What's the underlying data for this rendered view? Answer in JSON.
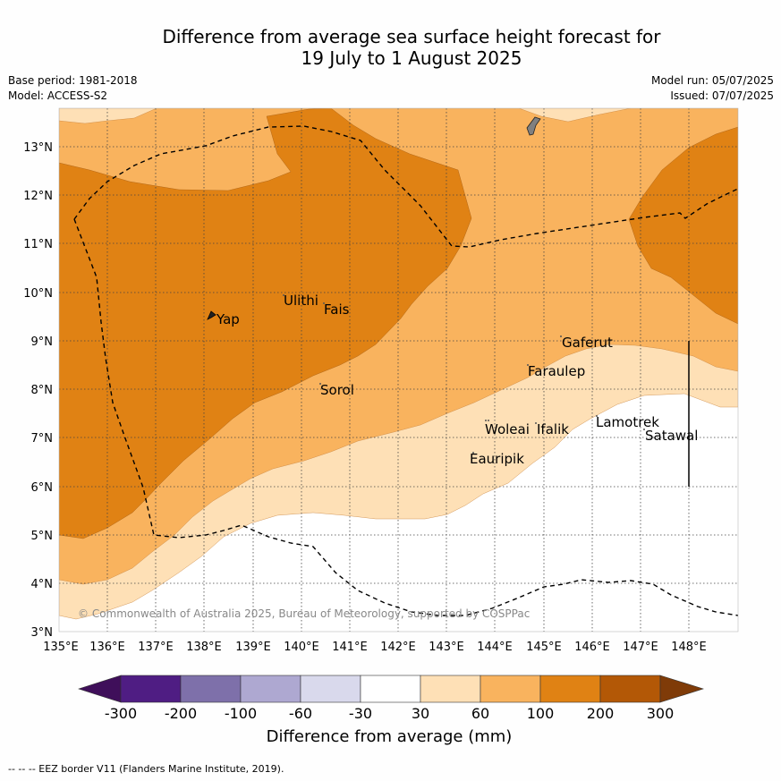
{
  "title": {
    "line1": "Difference from average sea surface height forecast for",
    "line2": "19 July to 1 August 2025"
  },
  "meta": {
    "base_period": "Base period: 1981-2018",
    "model": "Model: ACCESS-S2",
    "model_run": "Model run: 05/07/2025",
    "issued": "Issued: 07/07/2025"
  },
  "map": {
    "lon_labels": [
      "135°E",
      "136°E",
      "137°E",
      "138°E",
      "139°E",
      "140°E",
      "141°E",
      "142°E",
      "143°E",
      "144°E",
      "145°E",
      "146°E",
      "147°E",
      "148°E"
    ],
    "lat_labels": [
      "13°N",
      "12°N",
      "11°N",
      "10°N",
      "9°N",
      "8°N",
      "7°N",
      "6°N",
      "5°N",
      "4°N",
      "3°N"
    ],
    "places": [
      "Yap",
      "Ulithi",
      "Fais",
      "Sorol",
      "Gaferut",
      "Faraulep",
      "Woleai",
      "Ifalik",
      "Lamotrek",
      "Satawal",
      "Eauripik"
    ],
    "copyright": "© Commonwealth of Australia 2025, Bureau of Meteorology, supported by COSPPac"
  },
  "colorbar": {
    "ticks": [
      "-300",
      "-200",
      "-100",
      "-60",
      "-30",
      "30",
      "60",
      "100",
      "200",
      "300"
    ],
    "title": "Difference from average (mm)",
    "colors": [
      "#3f0f5a",
      "#4f1d83",
      "#7e70aa",
      "#aea8d1",
      "#d9d9ec",
      "#ffffff",
      "#fee0b6",
      "#f9b35e",
      "#e08214",
      "#b35806",
      "#7f3b08"
    ]
  },
  "footnote": "--  --  -- EEZ border V11 (Flanders Marine Institute, 2019)."
}
